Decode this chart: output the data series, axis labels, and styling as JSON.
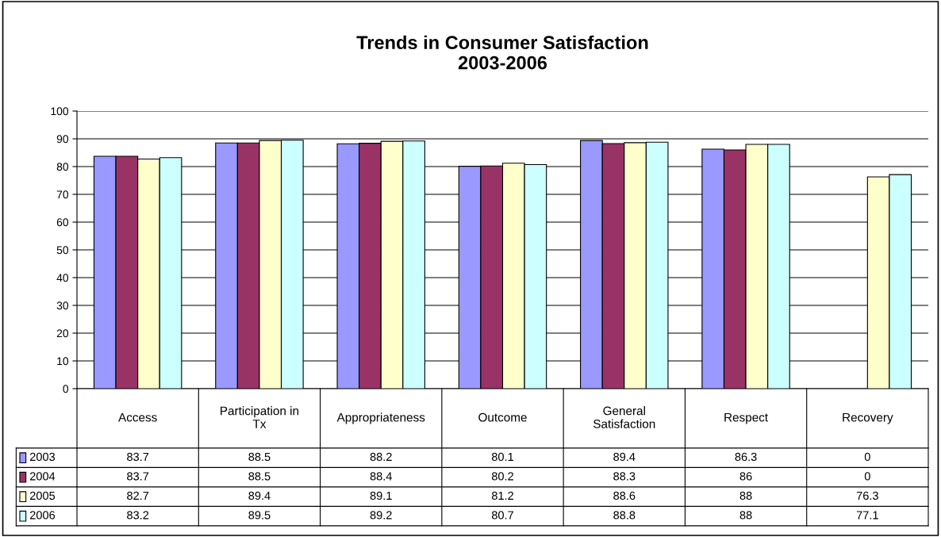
{
  "chart_data": {
    "type": "bar",
    "title": "Trends in Consumer Satisfaction\n2003-2006",
    "categories": [
      "Access",
      "Participation in\nTx",
      "Appropriateness",
      "Outcome",
      "General\nSatisfaction",
      "Respect",
      "Recovery"
    ],
    "series": [
      {
        "name": "2003",
        "color": "#9999ff",
        "values": [
          83.7,
          88.5,
          88.2,
          80.1,
          89.4,
          86.3,
          0
        ]
      },
      {
        "name": "2004",
        "color": "#993366",
        "values": [
          83.7,
          88.5,
          88.4,
          80.2,
          88.3,
          86,
          0
        ]
      },
      {
        "name": "2005",
        "color": "#ffffcc",
        "values": [
          82.7,
          89.4,
          89.1,
          81.2,
          88.6,
          88,
          76.3
        ]
      },
      {
        "name": "2006",
        "color": "#ccffff",
        "values": [
          83.2,
          89.5,
          89.2,
          80.7,
          88.8,
          88,
          77.1
        ]
      }
    ],
    "ylim": [
      0,
      100
    ],
    "yticks": [
      0,
      10,
      20,
      30,
      40,
      50,
      60,
      70,
      80,
      90,
      100
    ],
    "grid": "y",
    "legend": "bottom",
    "data_labels": true
  }
}
